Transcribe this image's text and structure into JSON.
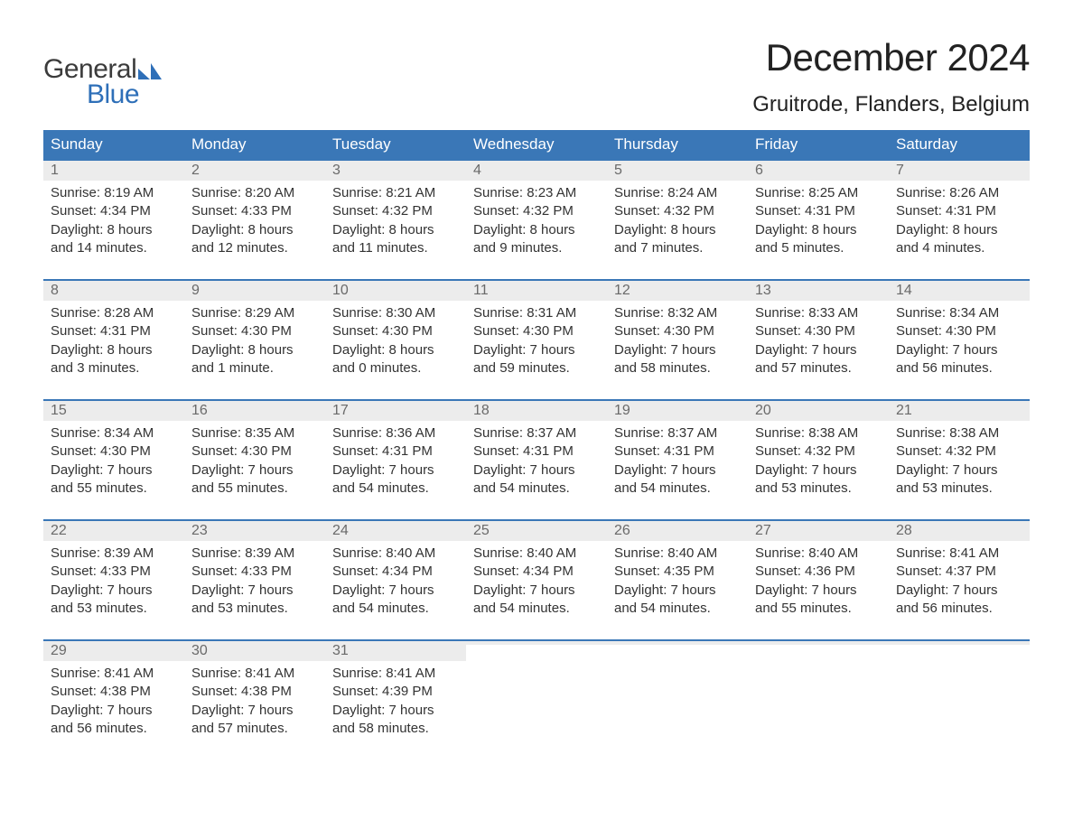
{
  "logo": {
    "general": "General",
    "blue": "Blue",
    "flag_color": "#2e6fb8"
  },
  "title": "December 2024",
  "location": "Gruitrode, Flanders, Belgium",
  "colors": {
    "header_bg": "#3a77b7",
    "header_text": "#ffffff",
    "daynum_bg": "#ececec",
    "daynum_text": "#6a6a6a",
    "body_text": "#333333",
    "rule": "#3a77b7"
  },
  "weekdays": [
    "Sunday",
    "Monday",
    "Tuesday",
    "Wednesday",
    "Thursday",
    "Friday",
    "Saturday"
  ],
  "weeks": [
    [
      {
        "n": "1",
        "sunrise": "Sunrise: 8:19 AM",
        "sunset": "Sunset: 4:34 PM",
        "d1": "Daylight: 8 hours",
        "d2": "and 14 minutes."
      },
      {
        "n": "2",
        "sunrise": "Sunrise: 8:20 AM",
        "sunset": "Sunset: 4:33 PM",
        "d1": "Daylight: 8 hours",
        "d2": "and 12 minutes."
      },
      {
        "n": "3",
        "sunrise": "Sunrise: 8:21 AM",
        "sunset": "Sunset: 4:32 PM",
        "d1": "Daylight: 8 hours",
        "d2": "and 11 minutes."
      },
      {
        "n": "4",
        "sunrise": "Sunrise: 8:23 AM",
        "sunset": "Sunset: 4:32 PM",
        "d1": "Daylight: 8 hours",
        "d2": "and 9 minutes."
      },
      {
        "n": "5",
        "sunrise": "Sunrise: 8:24 AM",
        "sunset": "Sunset: 4:32 PM",
        "d1": "Daylight: 8 hours",
        "d2": "and 7 minutes."
      },
      {
        "n": "6",
        "sunrise": "Sunrise: 8:25 AM",
        "sunset": "Sunset: 4:31 PM",
        "d1": "Daylight: 8 hours",
        "d2": "and 5 minutes."
      },
      {
        "n": "7",
        "sunrise": "Sunrise: 8:26 AM",
        "sunset": "Sunset: 4:31 PM",
        "d1": "Daylight: 8 hours",
        "d2": "and 4 minutes."
      }
    ],
    [
      {
        "n": "8",
        "sunrise": "Sunrise: 8:28 AM",
        "sunset": "Sunset: 4:31 PM",
        "d1": "Daylight: 8 hours",
        "d2": "and 3 minutes."
      },
      {
        "n": "9",
        "sunrise": "Sunrise: 8:29 AM",
        "sunset": "Sunset: 4:30 PM",
        "d1": "Daylight: 8 hours",
        "d2": "and 1 minute."
      },
      {
        "n": "10",
        "sunrise": "Sunrise: 8:30 AM",
        "sunset": "Sunset: 4:30 PM",
        "d1": "Daylight: 8 hours",
        "d2": "and 0 minutes."
      },
      {
        "n": "11",
        "sunrise": "Sunrise: 8:31 AM",
        "sunset": "Sunset: 4:30 PM",
        "d1": "Daylight: 7 hours",
        "d2": "and 59 minutes."
      },
      {
        "n": "12",
        "sunrise": "Sunrise: 8:32 AM",
        "sunset": "Sunset: 4:30 PM",
        "d1": "Daylight: 7 hours",
        "d2": "and 58 minutes."
      },
      {
        "n": "13",
        "sunrise": "Sunrise: 8:33 AM",
        "sunset": "Sunset: 4:30 PM",
        "d1": "Daylight: 7 hours",
        "d2": "and 57 minutes."
      },
      {
        "n": "14",
        "sunrise": "Sunrise: 8:34 AM",
        "sunset": "Sunset: 4:30 PM",
        "d1": "Daylight: 7 hours",
        "d2": "and 56 minutes."
      }
    ],
    [
      {
        "n": "15",
        "sunrise": "Sunrise: 8:34 AM",
        "sunset": "Sunset: 4:30 PM",
        "d1": "Daylight: 7 hours",
        "d2": "and 55 minutes."
      },
      {
        "n": "16",
        "sunrise": "Sunrise: 8:35 AM",
        "sunset": "Sunset: 4:30 PM",
        "d1": "Daylight: 7 hours",
        "d2": "and 55 minutes."
      },
      {
        "n": "17",
        "sunrise": "Sunrise: 8:36 AM",
        "sunset": "Sunset: 4:31 PM",
        "d1": "Daylight: 7 hours",
        "d2": "and 54 minutes."
      },
      {
        "n": "18",
        "sunrise": "Sunrise: 8:37 AM",
        "sunset": "Sunset: 4:31 PM",
        "d1": "Daylight: 7 hours",
        "d2": "and 54 minutes."
      },
      {
        "n": "19",
        "sunrise": "Sunrise: 8:37 AM",
        "sunset": "Sunset: 4:31 PM",
        "d1": "Daylight: 7 hours",
        "d2": "and 54 minutes."
      },
      {
        "n": "20",
        "sunrise": "Sunrise: 8:38 AM",
        "sunset": "Sunset: 4:32 PM",
        "d1": "Daylight: 7 hours",
        "d2": "and 53 minutes."
      },
      {
        "n": "21",
        "sunrise": "Sunrise: 8:38 AM",
        "sunset": "Sunset: 4:32 PM",
        "d1": "Daylight: 7 hours",
        "d2": "and 53 minutes."
      }
    ],
    [
      {
        "n": "22",
        "sunrise": "Sunrise: 8:39 AM",
        "sunset": "Sunset: 4:33 PM",
        "d1": "Daylight: 7 hours",
        "d2": "and 53 minutes."
      },
      {
        "n": "23",
        "sunrise": "Sunrise: 8:39 AM",
        "sunset": "Sunset: 4:33 PM",
        "d1": "Daylight: 7 hours",
        "d2": "and 53 minutes."
      },
      {
        "n": "24",
        "sunrise": "Sunrise: 8:40 AM",
        "sunset": "Sunset: 4:34 PM",
        "d1": "Daylight: 7 hours",
        "d2": "and 54 minutes."
      },
      {
        "n": "25",
        "sunrise": "Sunrise: 8:40 AM",
        "sunset": "Sunset: 4:34 PM",
        "d1": "Daylight: 7 hours",
        "d2": "and 54 minutes."
      },
      {
        "n": "26",
        "sunrise": "Sunrise: 8:40 AM",
        "sunset": "Sunset: 4:35 PM",
        "d1": "Daylight: 7 hours",
        "d2": "and 54 minutes."
      },
      {
        "n": "27",
        "sunrise": "Sunrise: 8:40 AM",
        "sunset": "Sunset: 4:36 PM",
        "d1": "Daylight: 7 hours",
        "d2": "and 55 minutes."
      },
      {
        "n": "28",
        "sunrise": "Sunrise: 8:41 AM",
        "sunset": "Sunset: 4:37 PM",
        "d1": "Daylight: 7 hours",
        "d2": "and 56 minutes."
      }
    ],
    [
      {
        "n": "29",
        "sunrise": "Sunrise: 8:41 AM",
        "sunset": "Sunset: 4:38 PM",
        "d1": "Daylight: 7 hours",
        "d2": "and 56 minutes."
      },
      {
        "n": "30",
        "sunrise": "Sunrise: 8:41 AM",
        "sunset": "Sunset: 4:38 PM",
        "d1": "Daylight: 7 hours",
        "d2": "and 57 minutes."
      },
      {
        "n": "31",
        "sunrise": "Sunrise: 8:41 AM",
        "sunset": "Sunset: 4:39 PM",
        "d1": "Daylight: 7 hours",
        "d2": "and 58 minutes."
      },
      {
        "empty": true
      },
      {
        "empty": true
      },
      {
        "empty": true
      },
      {
        "empty": true
      }
    ]
  ]
}
